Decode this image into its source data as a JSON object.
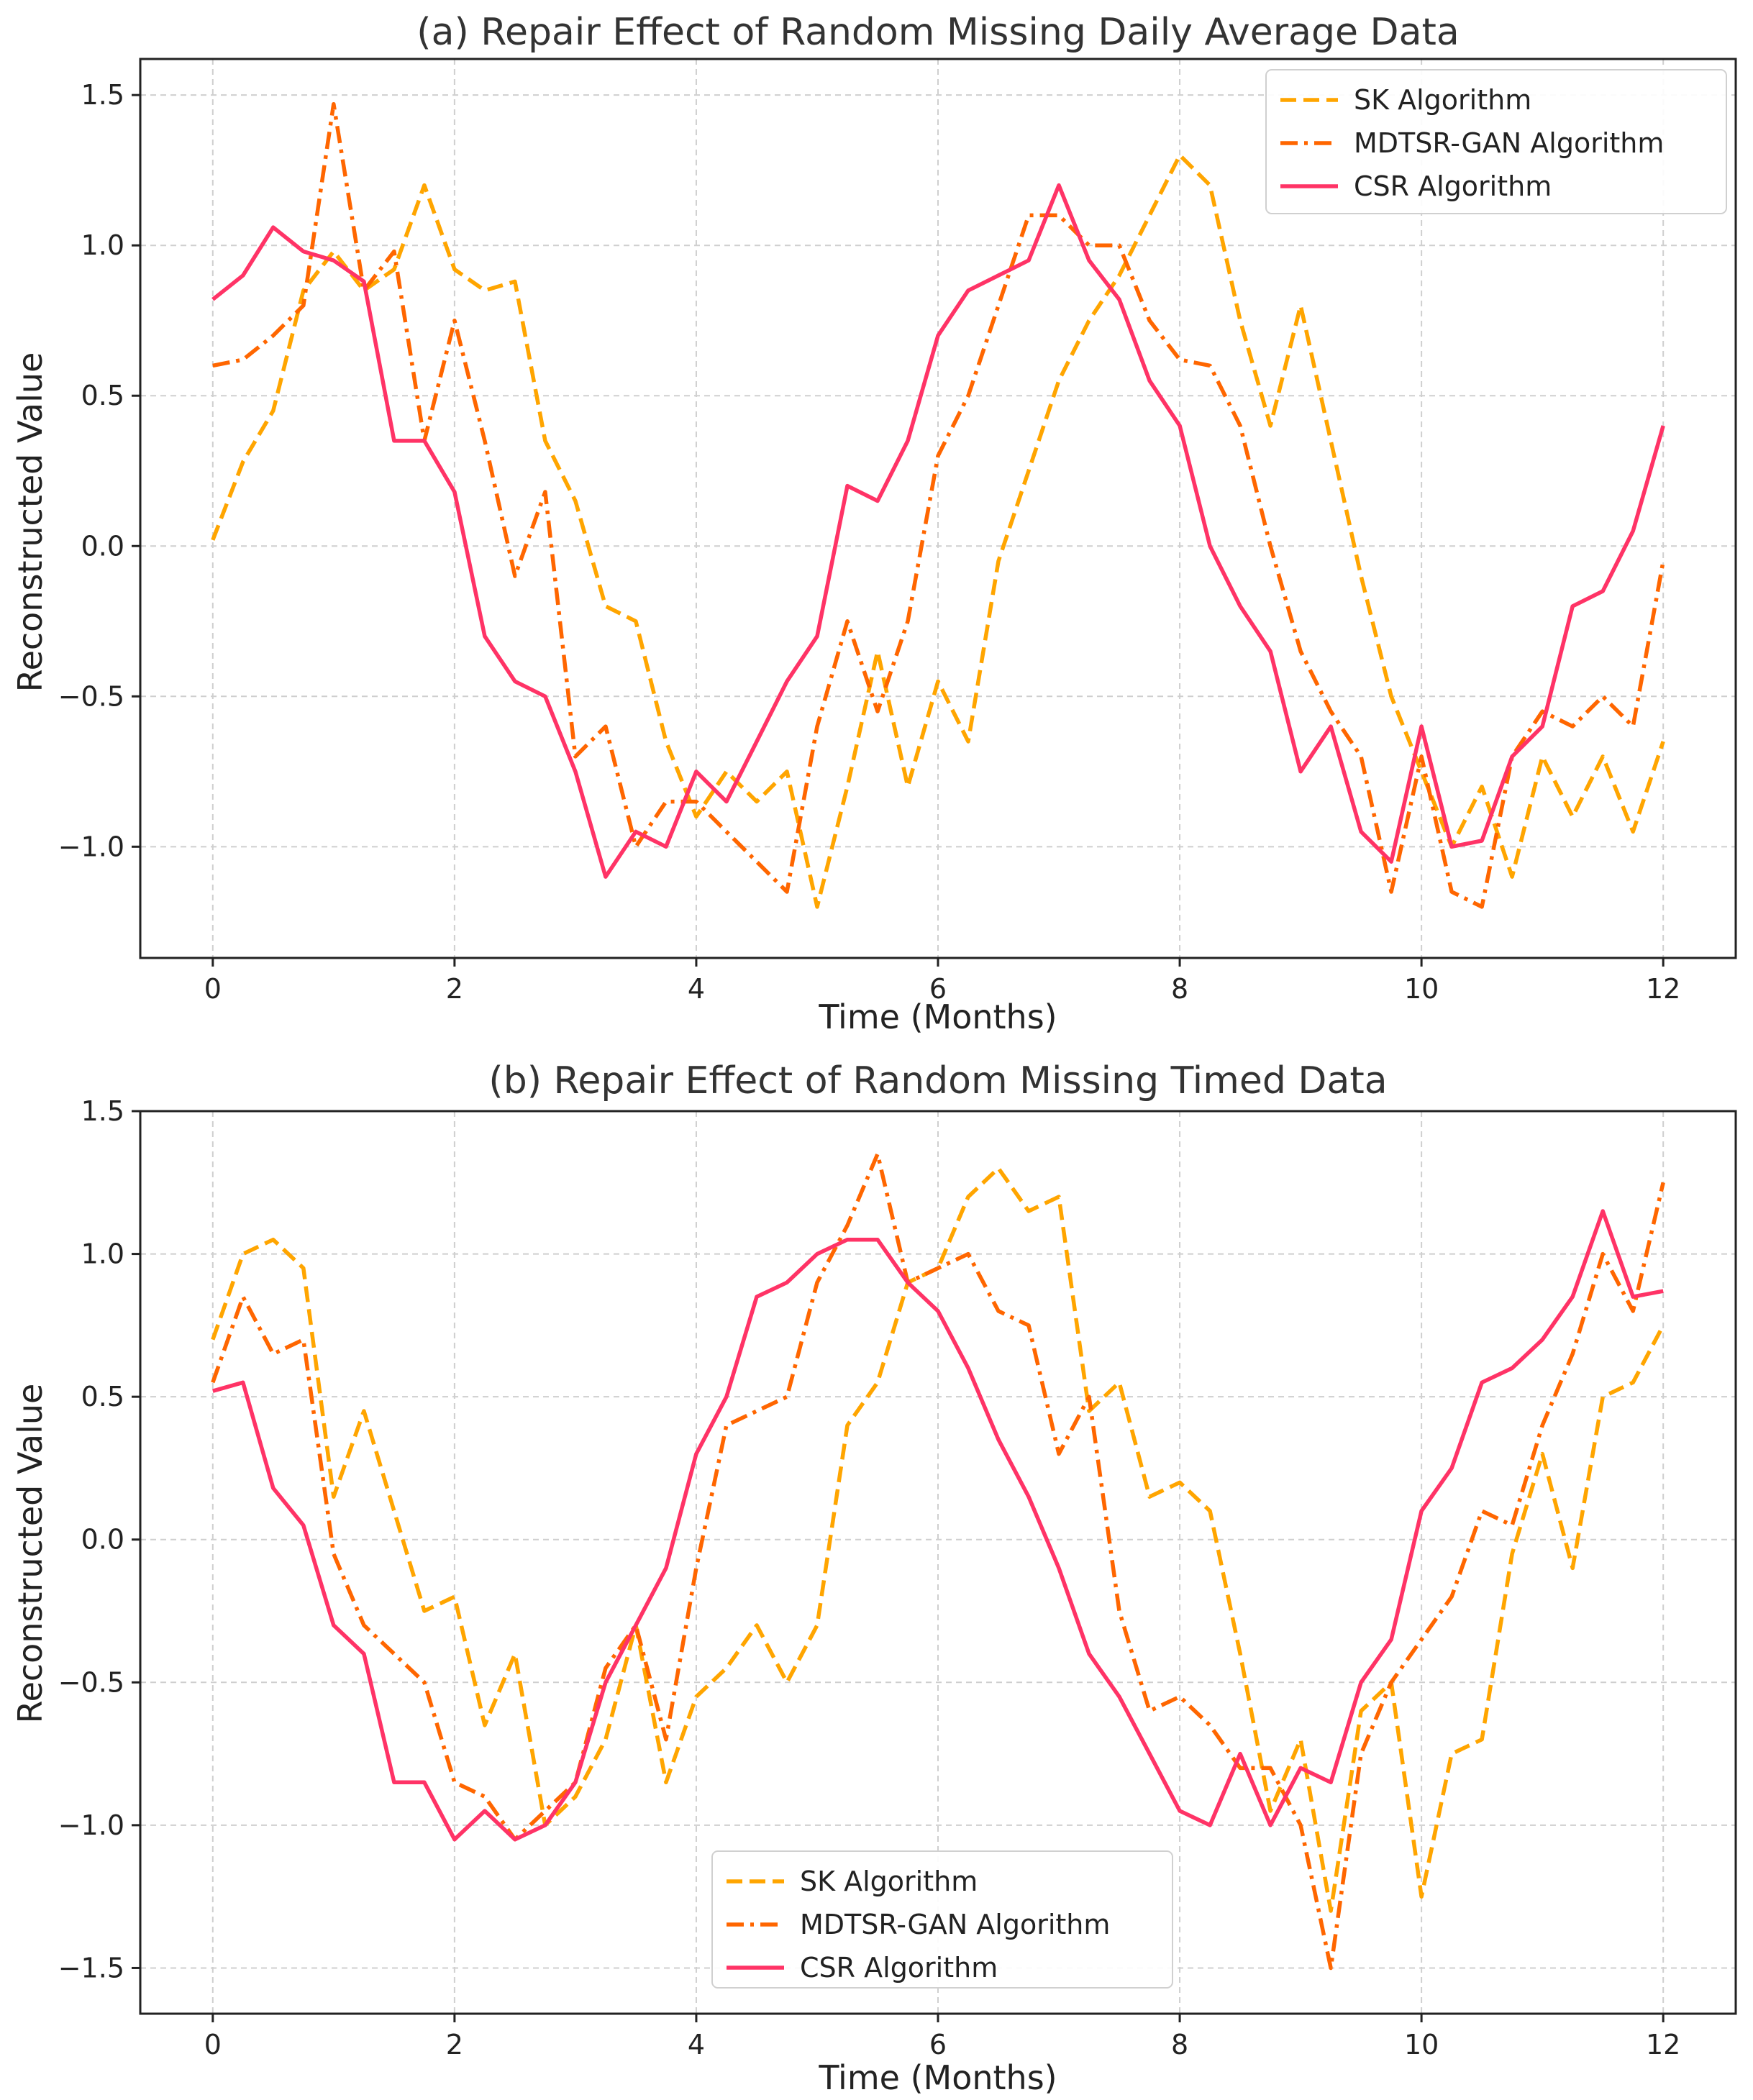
{
  "chart_data": [
    {
      "type": "line",
      "title": "(a) Repair Effect of Random Missing Daily Average Data",
      "xlabel": "Time (Months)",
      "ylabel": "Reconstructed Value",
      "xlim": [
        -0.6,
        12.6
      ],
      "ylim": [
        -1.37,
        1.62
      ],
      "xticks": [
        0,
        2,
        4,
        6,
        8,
        10,
        12
      ],
      "xtick_labels": [
        "0",
        "2",
        "4",
        "6",
        "8",
        "10",
        "12"
      ],
      "yticks": [
        -1.0,
        -0.5,
        0.0,
        0.5,
        1.0,
        1.5
      ],
      "ytick_labels": [
        "−1.0",
        "−0.5",
        "0.0",
        "0.5",
        "1.0",
        "1.5"
      ],
      "grid": true,
      "legend_position": "top-right",
      "x": [
        0,
        0.25,
        0.5,
        0.75,
        1,
        1.25,
        1.5,
        1.75,
        2,
        2.25,
        2.5,
        2.75,
        3,
        3.25,
        3.5,
        3.75,
        4,
        4.25,
        4.5,
        4.75,
        5,
        5.25,
        5.5,
        5.75,
        6,
        6.25,
        6.5,
        6.75,
        7,
        7.25,
        7.5,
        7.75,
        8,
        8.25,
        8.5,
        8.75,
        9,
        9.25,
        9.5,
        9.75,
        10,
        10.25,
        10.5,
        10.75,
        11,
        11.25,
        11.5,
        11.75,
        12
      ],
      "series": [
        {
          "name": "SK Algorithm",
          "color": "#FFA500",
          "dash": "dashed",
          "values": [
            0.02,
            0.28,
            0.45,
            0.85,
            0.98,
            0.85,
            0.92,
            1.2,
            0.92,
            0.85,
            0.88,
            0.35,
            0.15,
            -0.2,
            -0.25,
            -0.65,
            -0.9,
            -0.75,
            -0.85,
            -0.75,
            -1.2,
            -0.8,
            -0.35,
            -0.8,
            -0.45,
            -0.65,
            -0.05,
            0.25,
            0.55,
            0.75,
            0.9,
            1.1,
            1.3,
            1.2,
            0.75,
            0.4,
            0.8,
            0.35,
            -0.1,
            -0.5,
            -0.75,
            -1.0,
            -0.8,
            -1.1,
            -0.7,
            -0.9,
            -0.7,
            -0.95,
            -0.65
          ]
        },
        {
          "name": "MDTSR-GAN Algorithm",
          "color": "#FF6600",
          "dash": "dashdot",
          "values": [
            0.6,
            0.62,
            0.7,
            0.8,
            1.47,
            0.85,
            0.98,
            0.35,
            0.75,
            0.35,
            -0.1,
            0.18,
            -0.7,
            -0.6,
            -1.0,
            -0.85,
            -0.85,
            -0.95,
            -1.05,
            -1.15,
            -0.6,
            -0.25,
            -0.55,
            -0.25,
            0.3,
            0.5,
            0.8,
            1.1,
            1.1,
            1.0,
            1.0,
            0.75,
            0.62,
            0.6,
            0.4,
            0.0,
            -0.35,
            -0.55,
            -0.7,
            -1.15,
            -0.7,
            -1.15,
            -1.2,
            -0.7,
            -0.55,
            -0.6,
            -0.5,
            -0.6,
            -0.05
          ]
        },
        {
          "name": "CSR Algorithm",
          "color": "#FF3366",
          "dash": "solid",
          "values": [
            0.82,
            0.9,
            1.06,
            0.98,
            0.95,
            0.88,
            0.35,
            0.35,
            0.18,
            -0.3,
            -0.45,
            -0.5,
            -0.75,
            -1.1,
            -0.95,
            -1.0,
            -0.75,
            -0.85,
            -0.65,
            -0.45,
            -0.3,
            0.2,
            0.15,
            0.35,
            0.7,
            0.85,
            0.9,
            0.95,
            1.2,
            0.95,
            0.82,
            0.55,
            0.4,
            0.0,
            -0.2,
            -0.35,
            -0.75,
            -0.6,
            -0.95,
            -1.05,
            -0.6,
            -1.0,
            -0.98,
            -0.7,
            -0.6,
            -0.2,
            -0.15,
            0.05,
            0.4
          ]
        }
      ]
    },
    {
      "type": "line",
      "title": "(b) Repair Effect of Random Missing Timed Data",
      "xlabel": "Time (Months)",
      "ylabel": "Reconstructed Value",
      "xlim": [
        -0.6,
        12.6
      ],
      "ylim": [
        -1.66,
        1.5
      ],
      "xticks": [
        0,
        2,
        4,
        6,
        8,
        10,
        12
      ],
      "xtick_labels": [
        "0",
        "2",
        "4",
        "6",
        "8",
        "10",
        "12"
      ],
      "yticks": [
        -1.5,
        -1.0,
        -0.5,
        0.0,
        0.5,
        1.0,
        1.5
      ],
      "ytick_labels": [
        "−1.5",
        "−1.0",
        "−0.5",
        "0.0",
        "0.5",
        "1.0",
        "1.5"
      ],
      "grid": true,
      "legend_position": "bottom-center",
      "x": [
        0,
        0.25,
        0.5,
        0.75,
        1,
        1.25,
        1.5,
        1.75,
        2,
        2.25,
        2.5,
        2.75,
        3,
        3.25,
        3.5,
        3.75,
        4,
        4.25,
        4.5,
        4.75,
        5,
        5.25,
        5.5,
        5.75,
        6,
        6.25,
        6.5,
        6.75,
        7,
        7.25,
        7.5,
        7.75,
        8,
        8.25,
        8.5,
        8.75,
        9,
        9.25,
        9.5,
        9.75,
        10,
        10.25,
        10.5,
        10.75,
        11,
        11.25,
        11.5,
        11.75,
        12
      ],
      "series": [
        {
          "name": "SK Algorithm",
          "color": "#FFA500",
          "dash": "dashed",
          "values": [
            0.7,
            1.0,
            1.05,
            0.95,
            0.15,
            0.45,
            0.1,
            -0.25,
            -0.2,
            -0.65,
            -0.4,
            -1.0,
            -0.9,
            -0.7,
            -0.3,
            -0.85,
            -0.55,
            -0.45,
            -0.3,
            -0.5,
            -0.3,
            0.4,
            0.55,
            0.9,
            0.95,
            1.2,
            1.3,
            1.15,
            1.2,
            0.45,
            0.55,
            0.15,
            0.2,
            0.1,
            -0.4,
            -0.95,
            -0.7,
            -1.3,
            -0.6,
            -0.5,
            -1.25,
            -0.75,
            -0.7,
            -0.05,
            0.3,
            -0.1,
            0.5,
            0.55,
            0.75
          ]
        },
        {
          "name": "MDTSR-GAN Algorithm",
          "color": "#FF6600",
          "dash": "dashdot",
          "values": [
            0.55,
            0.85,
            0.65,
            0.7,
            -0.05,
            -0.3,
            -0.4,
            -0.5,
            -0.85,
            -0.9,
            -1.05,
            -0.95,
            -0.85,
            -0.45,
            -0.3,
            -0.7,
            -0.1,
            0.4,
            0.45,
            0.5,
            0.9,
            1.1,
            1.35,
            0.9,
            0.95,
            1.0,
            0.8,
            0.75,
            0.3,
            0.5,
            -0.25,
            -0.6,
            -0.55,
            -0.65,
            -0.8,
            -0.8,
            -1.0,
            -1.5,
            -0.75,
            -0.5,
            -0.35,
            -0.2,
            0.1,
            0.05,
            0.4,
            0.65,
            1.0,
            0.8,
            1.25
          ]
        },
        {
          "name": "CSR Algorithm",
          "color": "#FF3366",
          "dash": "solid",
          "values": [
            0.52,
            0.55,
            0.18,
            0.05,
            -0.3,
            -0.4,
            -0.85,
            -0.85,
            -1.05,
            -0.95,
            -1.05,
            -1.0,
            -0.85,
            -0.5,
            -0.3,
            -0.1,
            0.3,
            0.5,
            0.85,
            0.9,
            1.0,
            1.05,
            1.05,
            0.9,
            0.8,
            0.6,
            0.35,
            0.15,
            -0.1,
            -0.4,
            -0.55,
            -0.75,
            -0.95,
            -1.0,
            -0.75,
            -1.0,
            -0.8,
            -0.85,
            -0.5,
            -0.35,
            0.1,
            0.25,
            0.55,
            0.6,
            0.7,
            0.85,
            1.15,
            0.85,
            0.87
          ]
        }
      ]
    }
  ]
}
